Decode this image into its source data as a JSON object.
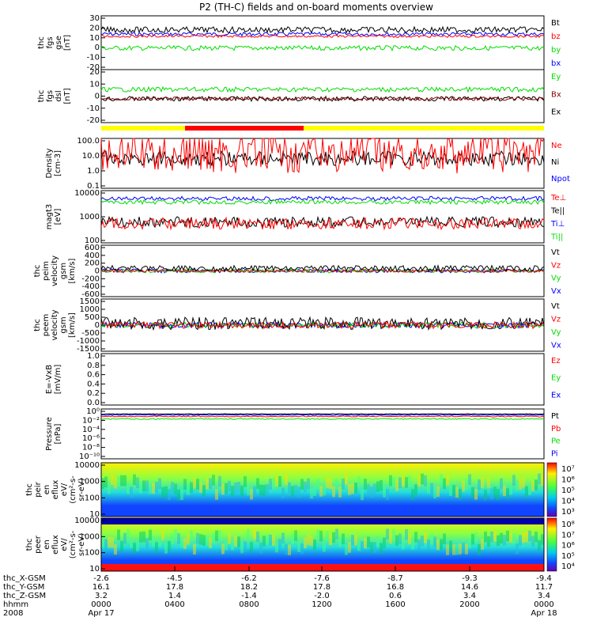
{
  "title": "P2 (TH-C) fields and on-board moments overview",
  "colors": {
    "black": "#000000",
    "red": "#ff0000",
    "green": "#00dd00",
    "blue": "#0000ff",
    "darkred": "#8b0000",
    "yellow": "#ffff00",
    "purple": "#8000ff"
  },
  "panels": [
    {
      "id": "fgs",
      "ylabel": [
        "thc",
        "fgs",
        "gse",
        "[nT]"
      ],
      "ticks": [
        "30",
        "20",
        "10",
        "0",
        "-10",
        "-20"
      ],
      "legend": [
        [
          "Bt",
          "black"
        ],
        [
          "bz",
          "red"
        ],
        [
          "by",
          "green"
        ],
        [
          "bx",
          "blue"
        ]
      ],
      "traces": [
        [
          "blue",
          8,
          3
        ],
        [
          "green",
          -5,
          4
        ],
        [
          "red",
          6,
          2
        ],
        [
          "black",
          12,
          5
        ]
      ]
    },
    {
      "id": "fgs-dsl",
      "ylabel": [
        "thc",
        "fgs",
        "dsl",
        "[nT]"
      ],
      "ticks": [
        "20",
        "10",
        "0",
        "-10",
        "-20"
      ],
      "legend": [
        [
          "Ey",
          "green"
        ],
        [
          "Bx",
          "darkred"
        ],
        [
          "Ex",
          "black"
        ]
      ],
      "traces": [
        [
          "green",
          5,
          4
        ],
        [
          "black",
          -2,
          4
        ],
        [
          "darkred",
          -2,
          3
        ]
      ]
    },
    {
      "id": "density",
      "ylabel": [
        "Density",
        "[cm-3]"
      ],
      "ticks": [
        "100.0",
        "10.0",
        "1.0",
        "0.1"
      ],
      "legend": [
        [
          "Ne",
          "red"
        ],
        [
          "Ni",
          "black"
        ],
        [
          "Npot",
          "blue"
        ]
      ],
      "traces": [
        [
          "black",
          0.6,
          0.3
        ],
        [
          "red",
          0.7,
          0.8
        ]
      ]
    },
    {
      "id": "temp",
      "ylabel": [
        "magt3",
        "[eV]"
      ],
      "ticks": [
        "10000",
        "1000",
        "100"
      ],
      "legend": [
        [
          "Te⊥",
          "red"
        ],
        [
          "Te||",
          "black"
        ],
        [
          "Ti⊥",
          "blue"
        ],
        [
          "Ti||",
          "green"
        ]
      ],
      "traces": [
        [
          "blue",
          0.85,
          0.08
        ],
        [
          "green",
          0.78,
          0.08
        ],
        [
          "black",
          0.4,
          0.2
        ],
        [
          "red",
          0.37,
          0.22
        ]
      ]
    },
    {
      "id": "peim",
      "ylabel": [
        "thc",
        "peim",
        "velocity",
        "gsm",
        "[km/s]"
      ],
      "ticks": [
        "600",
        "400",
        "200",
        "0",
        "-200",
        "-400",
        "-600"
      ],
      "legend": [
        [
          "Vt",
          "black"
        ],
        [
          "Vz",
          "red"
        ],
        [
          "Vy",
          "green"
        ],
        [
          "Vx",
          "blue"
        ]
      ],
      "traces": [
        [
          "blue",
          0,
          40
        ],
        [
          "green",
          0,
          40
        ],
        [
          "red",
          0,
          30
        ],
        [
          "black",
          60,
          60
        ]
      ]
    },
    {
      "id": "peem",
      "ylabel": [
        "thc",
        "peem",
        "velocity",
        "gsm",
        "[km/s]"
      ],
      "ticks": [
        "1500",
        "1000",
        "500",
        "0",
        "-500",
        "-1000",
        "-1500"
      ],
      "legend": [
        [
          "Vt",
          "black"
        ],
        [
          "Vz",
          "red"
        ],
        [
          "Vy",
          "green"
        ],
        [
          "Vx",
          "blue"
        ]
      ],
      "traces": [
        [
          "blue",
          0,
          60
        ],
        [
          "green",
          0,
          60
        ],
        [
          "black",
          100,
          130
        ],
        [
          "red",
          0,
          70
        ]
      ]
    },
    {
      "id": "efield",
      "ylabel": [
        "E=-VxB",
        "[mV/m]"
      ],
      "ticks": [
        "1.0",
        "0.8",
        "0.6",
        "0.4",
        "0.2",
        "0.0"
      ],
      "legend": [
        [
          "Ez",
          "red"
        ],
        [
          "Ey",
          "green"
        ],
        [
          "Ex",
          "blue"
        ]
      ],
      "traces": []
    },
    {
      "id": "pressure",
      "ylabel": [
        "Pressure",
        "[nPa]"
      ],
      "ticks": [
        "10⁰",
        "10⁻²",
        "10⁻⁴",
        "10⁻⁶",
        "10⁻⁸",
        "10⁻¹⁰"
      ],
      "legend": [
        [
          "Pt",
          "black"
        ],
        [
          "Pb",
          "red"
        ],
        [
          "Pe",
          "green"
        ],
        [
          "Pi",
          "blue"
        ]
      ],
      "traces": [
        [
          "black",
          0.9,
          0.01
        ],
        [
          "blue",
          0.88,
          0.015
        ],
        [
          "red",
          0.85,
          0.02
        ],
        [
          "green",
          0.8,
          0.02
        ]
      ]
    },
    {
      "id": "peir",
      "ylabel": [
        "thc",
        "peir",
        "en",
        "eflux",
        "eV/",
        "(cm²-s-",
        "sr-eV)"
      ],
      "ticks": [
        "10000",
        "1000",
        "100",
        "10"
      ],
      "colorbar": [
        "10⁷",
        "10⁶",
        "10⁵",
        "10⁴",
        "10³"
      ]
    },
    {
      "id": "peer",
      "ylabel": [
        "thc",
        "peer",
        "en",
        "eflux",
        "eV/",
        "(cm²-s-",
        "sr-eV)"
      ],
      "ticks": [
        "10000",
        "1000",
        "100",
        "10"
      ],
      "colorbar": [
        "10⁸",
        "10⁷",
        "10⁶",
        "10⁵",
        "10⁴"
      ]
    }
  ],
  "footer": {
    "rows": [
      [
        "thc_X-GSM",
        "-2.6",
        "-4.5",
        "-6.2",
        "-7.6",
        "-8.7",
        "-9.3",
        "-9.4"
      ],
      [
        "thc_Y-GSM",
        "16.1",
        "17.8",
        "18.2",
        "17.8",
        "16.8",
        "14.6",
        "11.7"
      ],
      [
        "thc_Z-GSM",
        "3.2",
        "1.4",
        "-1.4",
        "-2.0",
        "0.6",
        "3.4",
        "3.4"
      ],
      [
        "hhmm",
        "0000",
        "0400",
        "0800",
        "1200",
        "1600",
        "2000",
        "0000"
      ],
      [
        "2008",
        "Apr 17",
        "",
        "",
        "",
        "",
        "",
        "Apr 18"
      ]
    ]
  },
  "chart_data": {
    "type": "line",
    "title": "P2 (TH-C) fields and on-board moments overview",
    "x": [
      "0000",
      "0400",
      "0800",
      "1200",
      "1600",
      "2000",
      "0000"
    ],
    "xlabel": "hhmm",
    "date_range": [
      "2008 Apr 17",
      "Apr 18"
    ],
    "orbit": {
      "thc_X-GSM": [
        -2.6,
        -4.5,
        -6.2,
        -7.6,
        -8.7,
        -9.3,
        -9.4
      ],
      "thc_Y-GSM": [
        16.1,
        17.8,
        18.2,
        17.8,
        16.8,
        14.6,
        11.7
      ],
      "thc_Z-GSM": [
        3.2,
        1.4,
        -1.4,
        -2.0,
        0.6,
        3.4,
        3.4
      ]
    }
  }
}
